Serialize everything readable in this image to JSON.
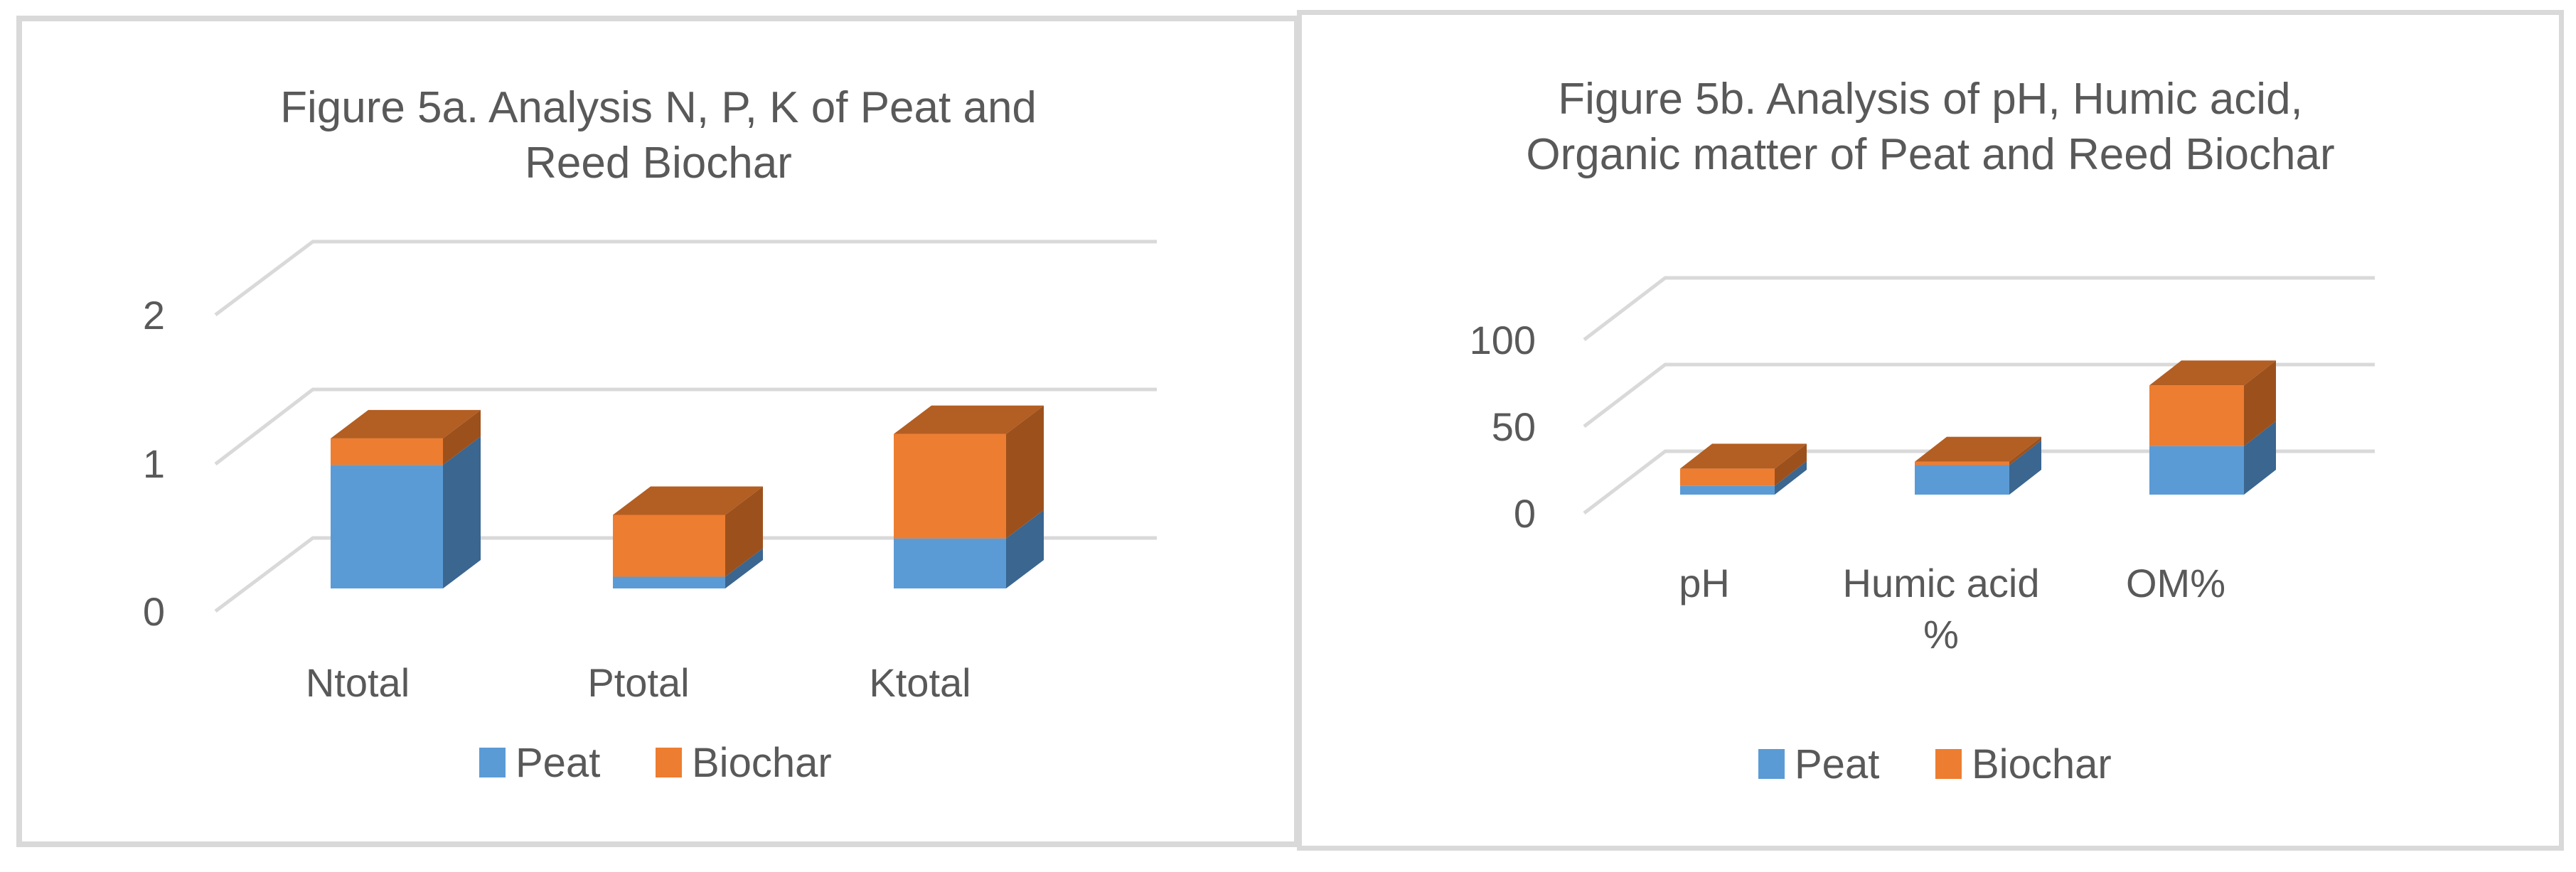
{
  "colors": {
    "peat_front": "#5b9bd5",
    "peat_side": "#3a6690",
    "biochar_front": "#ed7d31",
    "biochar_top": "#b35e22",
    "biochar_side": "#9c511d",
    "gridline": "#d9d9d9",
    "text": "#595959",
    "frame": "#d9d9d9"
  },
  "chart_data": [
    {
      "type": "bar",
      "stacked": true,
      "three_d": true,
      "title": "Figure 5a. Analysis N, P, K of Peat and Reed Biochar",
      "title_lines": [
        "Figure 5a. Analysis N, P, K of Peat and",
        "Reed Biochar"
      ],
      "categories": [
        "Ntotal",
        "Ptotal",
        "Ktotal"
      ],
      "series": [
        {
          "name": "Peat",
          "values": [
            0.84,
            0.08,
            0.34
          ]
        },
        {
          "name": "Biochar",
          "values": [
            0.18,
            0.42,
            0.71
          ]
        }
      ],
      "xlabel": "",
      "ylabel": "",
      "ylim": [
        0,
        2
      ],
      "yticks": [
        "0",
        "1",
        "2"
      ],
      "grid": true,
      "legend_position": "bottom",
      "legend": [
        "Peat",
        "Biochar"
      ]
    },
    {
      "type": "bar",
      "stacked": true,
      "three_d": true,
      "title": "Figure 5b. Analysis of pH, Humic acid, Organic matter of Peat and Reed Biochar",
      "title_lines": [
        "Figure 5b. Analysis of pH, Humic acid,",
        "Organic matter of Peat and Reed Biochar"
      ],
      "categories": [
        "pH",
        "Humic acid %",
        "OM%"
      ],
      "category_lines": [
        [
          "pH"
        ],
        [
          "Humic acid",
          "%"
        ],
        [
          "OM%"
        ]
      ],
      "series": [
        {
          "name": "Peat",
          "values": [
            5,
            17,
            28
          ]
        },
        {
          "name": "Biochar",
          "values": [
            10,
            2,
            35
          ]
        }
      ],
      "xlabel": "",
      "ylabel": "",
      "ylim": [
        0,
        100
      ],
      "yticks": [
        "0",
        "50",
        "100"
      ],
      "grid": true,
      "legend_position": "bottom",
      "legend": [
        "Peat",
        "Biochar"
      ]
    }
  ]
}
